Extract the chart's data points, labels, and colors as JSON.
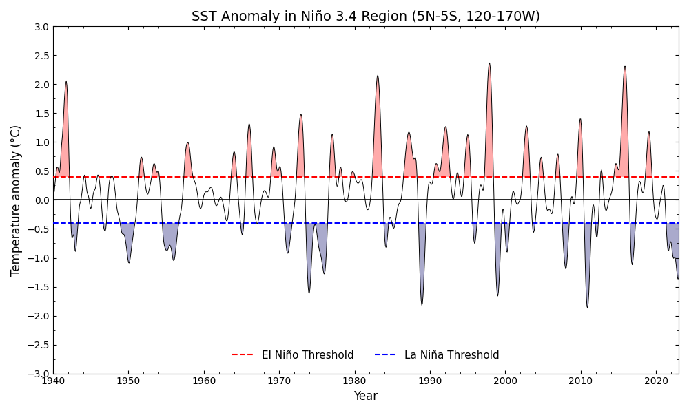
{
  "title": "SST Anomaly in Niño 3.4 Region (5N-5S, 120-170W)",
  "xlabel": "Year",
  "ylabel": "Temperature anomaly (°C)",
  "el_nino_threshold": 0.4,
  "la_nina_threshold": -0.4,
  "line_color": "black",
  "el_nino_fill_color": "#ffaaaa",
  "la_nina_fill_color": "#aaaacc",
  "el_nino_line_color": "red",
  "la_nina_line_color": "blue",
  "el_nino_label": "El Niño Threshold",
  "la_nina_label": "La Niña Threshold",
  "ylim": [
    -3.0,
    3.0
  ],
  "xlim": [
    1940,
    2023
  ],
  "yticks": [
    -3.0,
    -2.5,
    -2.0,
    -1.5,
    -1.0,
    -0.5,
    0.0,
    0.5,
    1.0,
    1.5,
    2.0,
    2.5,
    3.0
  ],
  "xticks": [
    1940,
    1950,
    1960,
    1970,
    1980,
    1990,
    2000,
    2010,
    2020
  ]
}
